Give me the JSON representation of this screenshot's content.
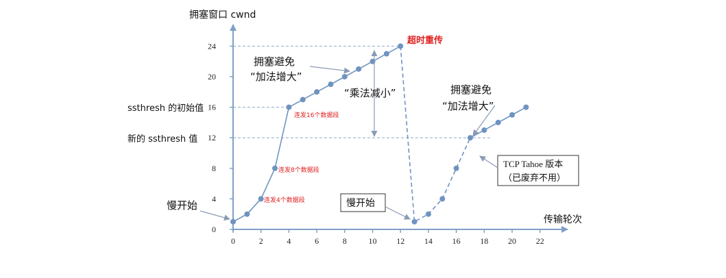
{
  "chart_data": {
    "type": "line",
    "ylabel": "拥塞窗口  cwnd",
    "xlabel": "传输轮次",
    "x_ticks": [
      "0",
      "2",
      "4",
      "6",
      "8",
      "10",
      "12",
      "14",
      "16",
      "18",
      "20",
      "22"
    ],
    "y_ticks": [
      "0",
      "4",
      "8",
      "12",
      "16",
      "20",
      "24"
    ],
    "xlim": [
      0,
      23.5
    ],
    "ylim": [
      0,
      26.5
    ],
    "series": [
      {
        "style": "solid",
        "x": [
          0,
          1,
          2,
          3,
          4,
          5,
          6,
          7,
          8,
          9,
          10,
          11,
          12
        ],
        "y": [
          1,
          2,
          4,
          8,
          16,
          17,
          18,
          19,
          20,
          21,
          22,
          23,
          24
        ]
      },
      {
        "style": "dashed",
        "x": [
          12,
          13,
          14,
          15,
          16,
          17
        ],
        "y": [
          24,
          1,
          2,
          4,
          8,
          12
        ]
      },
      {
        "style": "solid",
        "x": [
          17,
          18,
          19,
          20,
          21
        ],
        "y": [
          12,
          13,
          14,
          15,
          16
        ]
      }
    ],
    "ref_lines": [
      {
        "y": 24,
        "x0": 0,
        "x1": 12
      },
      {
        "y": 16,
        "x0": 0,
        "x1": 4
      },
      {
        "y": 12,
        "x0": 0,
        "x1": 18.5
      }
    ],
    "y_side_labels": {
      "initial": "ssthresh  的初始值",
      "new": "新的  ssthresh  值"
    },
    "annotations": {
      "timeout": "超时重传",
      "ca1_line1": "拥塞避免",
      "ca1_line2": "“加法增大”",
      "md": "“乘法减小”",
      "ca2_line1": "拥塞避免",
      "ca2_line2": "“加法增大”",
      "slow_start_left": "慢开始",
      "slow_start_box": "慢开始",
      "tahoe_line1": "TCP Tahoe  版本",
      "tahoe_line2": "（已废弃不用）",
      "seg16": "连发16个数据段",
      "seg8": "连发8个数据段",
      "seg4": "连发4个数据段"
    }
  },
  "colors": {
    "line": "#6f93c0",
    "axis": "#7f9fc8",
    "timeout": "#e02020",
    "guide": "#8fa8cc"
  }
}
